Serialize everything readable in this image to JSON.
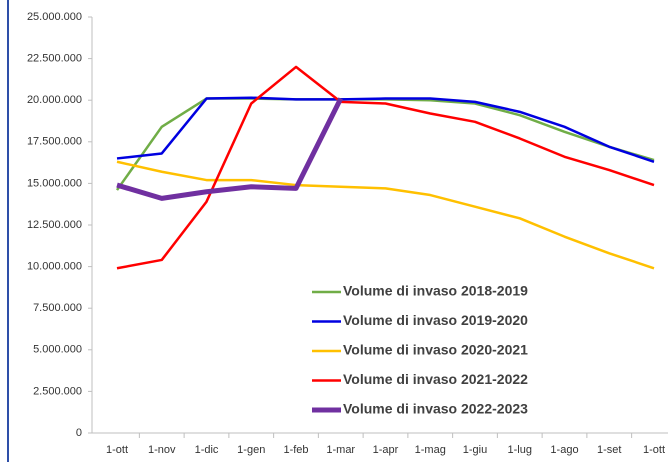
{
  "chart_data": {
    "type": "line",
    "categories": [
      "1-ott",
      "1-nov",
      "1-dic",
      "1-gen",
      "1-feb",
      "1-mar",
      "1-apr",
      "1-mag",
      "1-giu",
      "1-lug",
      "1-ago",
      "1-set",
      "1-ott"
    ],
    "series": [
      {
        "name": "Volume di invaso 2018-2019",
        "color": "#70ad47",
        "values": [
          14600000,
          18400000,
          20100000,
          20100000,
          20050000,
          20050000,
          20050000,
          20000000,
          19800000,
          19100000,
          18100000,
          17200000,
          16400000
        ]
      },
      {
        "name": "Volume di invaso 2019-2020",
        "color": "#0000e0",
        "values": [
          16500000,
          16800000,
          20100000,
          20150000,
          20050000,
          20050000,
          20100000,
          20100000,
          19900000,
          19300000,
          18400000,
          17200000,
          16300000
        ]
      },
      {
        "name": "Volume di invaso 2020-2021",
        "color": "#ffc000",
        "values": [
          16300000,
          15700000,
          15200000,
          15200000,
          14900000,
          14800000,
          14700000,
          14300000,
          13600000,
          12900000,
          11800000,
          10800000,
          9900000
        ]
      },
      {
        "name": "Volume di invaso 2021-2022",
        "color": "#ff0000",
        "values": [
          9900000,
          10400000,
          13900000,
          19800000,
          22000000,
          19900000,
          19800000,
          19200000,
          18700000,
          17700000,
          16600000,
          15800000,
          14900000
        ]
      },
      {
        "name": "Volume di invaso 2022-2023",
        "color": "#7030a0",
        "values": [
          14900000,
          14100000,
          14500000,
          14800000,
          14700000,
          20100000,
          null,
          null,
          null,
          null,
          null,
          null,
          null
        ]
      }
    ],
    "ylim": [
      0,
      25000000
    ],
    "yticks": [
      0,
      {
        "value": 2500000,
        "label": "2.500.000"
      },
      {
        "value": 5000000,
        "label": "5.000.000"
      },
      {
        "value": 7500000,
        "label": "7.500.000"
      },
      {
        "value": 10000000,
        "label": "10.000.000"
      },
      {
        "value": 12500000,
        "label": "12.500.000"
      },
      {
        "value": 15000000,
        "label": "15.000.000"
      },
      {
        "value": 17500000,
        "label": "17.500.000"
      },
      {
        "value": 20000000,
        "label": "20.000.000"
      },
      {
        "value": 22500000,
        "label": "22.500.000"
      },
      {
        "value": 25000000,
        "label": "25.000.000"
      }
    ],
    "grid": false,
    "legend": "lower right"
  }
}
